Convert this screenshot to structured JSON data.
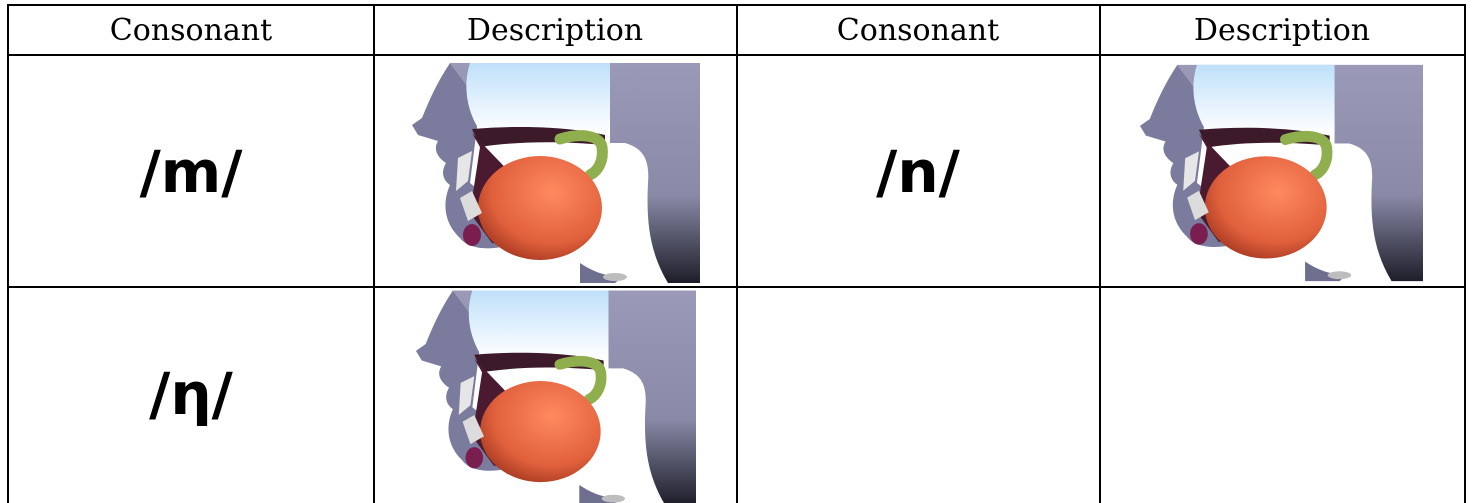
{
  "table": {
    "header": [
      "Consonant",
      "Description",
      "Consonant",
      "Description"
    ],
    "rows": [
      [
        "/m/",
        "/n/"
      ],
      [
        "/η/"
      ]
    ]
  }
}
